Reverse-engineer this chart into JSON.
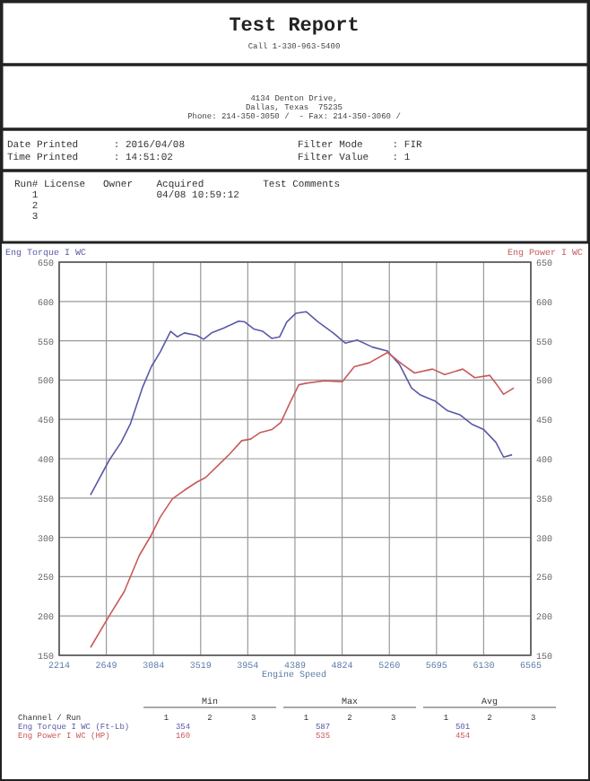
{
  "chart_data": {
    "type": "line",
    "title": "Test Report",
    "xlabel": "Engine Speed",
    "ylabel": "Eng Torque I WC",
    "y2label": "Eng Power I WC",
    "xlim": [
      2214,
      6565
    ],
    "xticks": [
      2214,
      2649,
      3084,
      3519,
      3954,
      4389,
      4824,
      5260,
      5695,
      6130,
      6565
    ],
    "ylim": [
      150,
      650
    ],
    "yticks": [
      150,
      200,
      250,
      300,
      350,
      400,
      450,
      500,
      550,
      600,
      650
    ],
    "y2lim": [
      150,
      650
    ],
    "y2ticks": [
      150,
      200,
      250,
      300,
      350,
      400,
      450,
      500,
      550,
      600,
      650
    ],
    "grid": true,
    "series": [
      {
        "color": "#5a5aa8",
        "x": [
          2503,
          2675,
          2786,
          2870,
          2981,
          3064,
          3147,
          3242,
          3303,
          3370,
          3481,
          3547,
          3620,
          3731,
          3870,
          3926,
          4009,
          4092,
          4175,
          4248,
          4314,
          4398,
          4492,
          4603,
          4742,
          4853,
          4964,
          5103,
          5242,
          5353,
          5464,
          5547,
          5686,
          5797,
          5909,
          6020,
          6131,
          6242,
          6314,
          6392
        ],
        "values": [
          354,
          398,
          421,
          444,
          490,
          517,
          536,
          562,
          555,
          560,
          557,
          552,
          560,
          566,
          575,
          574,
          565,
          562,
          553,
          555,
          574,
          585,
          587,
          574,
          560,
          547,
          551,
          542,
          537,
          520,
          490,
          481,
          473,
          461,
          456,
          444,
          437,
          421,
          402,
          405
        ]
      },
      {
        "color": "#c85a5a",
        "axis": "y2",
        "x": [
          2503,
          2675,
          2814,
          2953,
          3064,
          3147,
          3259,
          3370,
          3481,
          3564,
          3676,
          3787,
          3898,
          3981,
          4064,
          4175,
          4259,
          4342,
          4425,
          4492,
          4659,
          4826,
          4936,
          5075,
          5242,
          5381,
          5492,
          5659,
          5770,
          5937,
          6048,
          6187,
          6242,
          6314,
          6409
        ],
        "values": [
          160,
          200,
          231,
          277,
          303,
          326,
          349,
          360,
          370,
          376,
          391,
          406,
          423,
          425,
          433,
          437,
          446,
          471,
          494,
          496,
          499,
          498,
          517,
          522,
          535,
          520,
          509,
          514,
          507,
          514,
          503,
          506,
          496,
          482,
          490
        ]
      }
    ],
    "annotations": [
      "Call 1-330-963-5400",
      "4134 Denton Drive,",
      "Dallas, Texas  75235",
      "Phone: 214-350-3050 /  - Fax: 214-350-3060 /",
      "Date Printed      : 2016/04/08",
      "Time Printed      : 14:51:02",
      "Filter Mode     : FIR",
      "Filter Value    : 1",
      "Run# License   Owner    Acquired          Test Comments",
      "   1                    04/08 10:59:12",
      "   2",
      "   3",
      "Min",
      "Max",
      "Avg",
      "Channel / Run",
      "1        2        3",
      "1        2        3",
      "1        2        3",
      "Eng Torque I WC (Ft-Lb)",
      "354",
      "587",
      "501",
      "Eng Power I WC (HP)",
      "160",
      "535",
      "454"
    ]
  }
}
